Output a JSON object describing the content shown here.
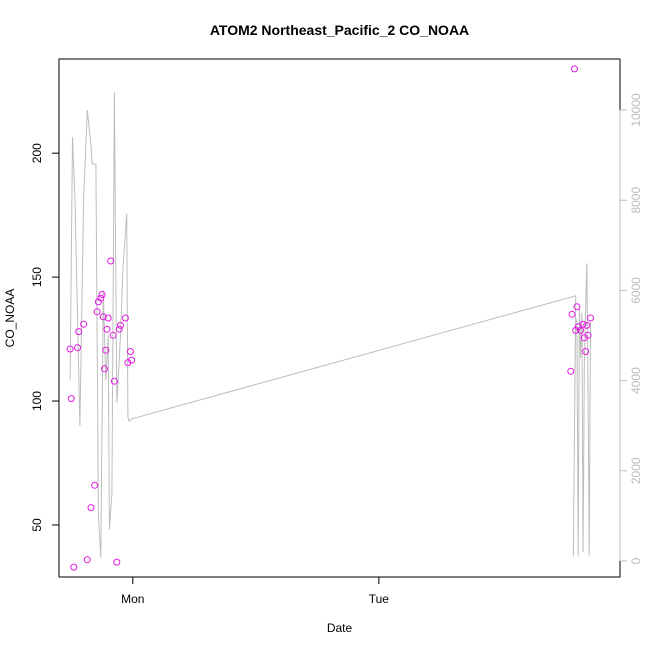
{
  "chart_data": {
    "type": "scatter",
    "title": "ATOM2 Northeast_Pacific_2 CO_NOAA",
    "xlabel": "Date",
    "ylabel": "CO_NOAA",
    "x_ticks": [
      "Mon",
      "Tue"
    ],
    "y_ticks_left": [
      50,
      100,
      150,
      200
    ],
    "y_ticks_right": [
      0,
      2000,
      4000,
      6000,
      8000,
      10000
    ],
    "xlim": [
      -0.3,
      1.98
    ],
    "ylim": [
      29,
      238
    ],
    "ylim_right": [
      0,
      10000
    ],
    "grid": false,
    "colors": {
      "points": "#e31ae3",
      "line": "#bdbdbd",
      "right_axis": "#bdbdbd"
    },
    "series": [
      {
        "type": "scatter",
        "axis": "left",
        "x": [
          -0.255,
          -0.25,
          -0.24,
          -0.225,
          -0.22,
          -0.2,
          -0.185,
          -0.17,
          -0.155,
          -0.145,
          -0.14,
          -0.13,
          -0.125,
          -0.12,
          -0.115,
          -0.11,
          -0.105,
          -0.1,
          -0.09,
          -0.08,
          -0.075,
          -0.065,
          -0.055,
          -0.05,
          -0.03,
          -0.02,
          -0.01,
          -0.005,
          1.78,
          1.785,
          1.795,
          1.8,
          1.805,
          1.81,
          1.82,
          1.83,
          1.835,
          1.84,
          1.845,
          1.85,
          1.86
        ],
        "y": [
          121,
          101,
          33,
          121.5,
          128,
          131,
          36,
          57,
          66,
          136,
          140,
          141.5,
          143,
          134,
          113,
          120.5,
          129,
          133.5,
          156.5,
          126.5,
          108,
          35,
          129,
          130.5,
          133.5,
          115.5,
          120,
          116.5,
          112,
          135,
          234,
          128.5,
          138,
          130,
          128.5,
          131,
          125.5,
          120,
          130.5,
          126.5,
          133.5
        ]
      },
      {
        "type": "line",
        "axis": "right",
        "x": [
          -0.255,
          -0.245,
          -0.235,
          -0.215,
          -0.2,
          -0.185,
          -0.17,
          -0.165,
          -0.15,
          -0.14,
          -0.13,
          -0.12,
          -0.115,
          -0.11,
          -0.1,
          -0.095,
          -0.085,
          -0.075,
          -0.065,
          -0.06,
          -0.05,
          -0.04,
          -0.025,
          -0.02,
          -0.015,
          -0.005,
          1.8,
          1.79,
          1.795,
          1.8,
          1.805,
          1.81,
          1.815,
          1.82,
          1.825,
          1.83,
          1.835,
          1.84,
          1.845,
          1.85,
          1.855,
          1.86
        ],
        "y": [
          4000,
          9400,
          8000,
          3000,
          8000,
          10000,
          9200,
          8800,
          8800,
          1000,
          80,
          6000,
          5000,
          4000,
          5000,
          700,
          1500,
          10400,
          3500,
          4000,
          5000,
          6500,
          7700,
          3200,
          3100,
          3150,
          5880,
          100,
          3000,
          5400,
          5300,
          100,
          5600,
          4500,
          5500,
          200,
          4300,
          5600,
          6600,
          3900,
          100,
          5300
        ]
      }
    ]
  }
}
